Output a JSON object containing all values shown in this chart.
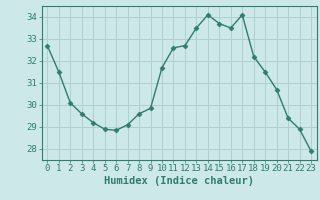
{
  "x": [
    0,
    1,
    2,
    3,
    4,
    5,
    6,
    7,
    8,
    9,
    10,
    11,
    12,
    13,
    14,
    15,
    16,
    17,
    18,
    19,
    20,
    21,
    22,
    23
  ],
  "y": [
    32.7,
    31.5,
    30.1,
    29.6,
    29.2,
    28.9,
    28.85,
    29.1,
    29.6,
    29.85,
    31.7,
    32.6,
    32.7,
    33.5,
    34.1,
    33.7,
    33.5,
    34.1,
    32.2,
    31.5,
    30.7,
    29.4,
    28.9,
    27.9
  ],
  "line_color": "#2e7d6e",
  "marker": "D",
  "marker_size": 2.5,
  "bg_color": "#cce8e8",
  "grid_color": "#b0d0d0",
  "xlabel": "Humidex (Indice chaleur)",
  "ylim": [
    27.5,
    34.5
  ],
  "xlim": [
    -0.5,
    23.5
  ],
  "yticks": [
    28,
    29,
    30,
    31,
    32,
    33,
    34
  ],
  "xticks": [
    0,
    1,
    2,
    3,
    4,
    5,
    6,
    7,
    8,
    9,
    10,
    11,
    12,
    13,
    14,
    15,
    16,
    17,
    18,
    19,
    20,
    21,
    22,
    23
  ],
  "tick_color": "#2e7d6e",
  "label_color": "#2e7d6e",
  "font_size_xlabel": 7.5,
  "font_size_ticks": 6.5
}
